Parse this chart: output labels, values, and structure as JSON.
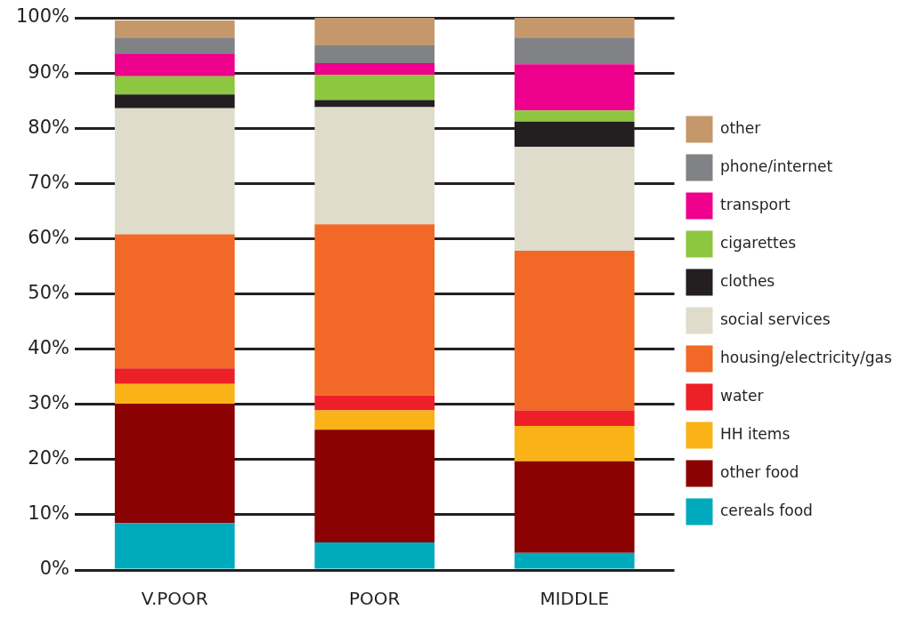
{
  "chart_data": {
    "type": "bar",
    "stacked": true,
    "categories": [
      "V.POOR",
      "POOR",
      "MIDDLE"
    ],
    "series": [
      {
        "name": "cereals food",
        "color": "#00aabd",
        "values": [
          8.5,
          5.0,
          3.1
        ]
      },
      {
        "name": "other food",
        "color": "#8b0203",
        "values": [
          21.6,
          20.4,
          16.6
        ]
      },
      {
        "name": "HH items",
        "color": "#f9b316",
        "values": [
          3.6,
          3.5,
          6.4
        ]
      },
      {
        "name": "water",
        "color": "#ed1f27",
        "values": [
          2.8,
          2.7,
          2.8
        ]
      },
      {
        "name": "housing/electricity/gas",
        "color": "#f26826",
        "values": [
          24.3,
          31.0,
          28.9
        ]
      },
      {
        "name": "social services",
        "color": "#dfdccb",
        "values": [
          22.8,
          21.2,
          18.8
        ]
      },
      {
        "name": "clothes",
        "color": "#231f20",
        "values": [
          2.5,
          1.3,
          4.6
        ]
      },
      {
        "name": "cigarettes",
        "color": "#8dc63f",
        "values": [
          3.3,
          4.6,
          2.0
        ]
      },
      {
        "name": "transport",
        "color": "#ec008c",
        "values": [
          4.1,
          2.1,
          8.4
        ]
      },
      {
        "name": "phone/internet",
        "color": "#818285",
        "values": [
          2.9,
          3.2,
          4.8
        ]
      },
      {
        "name": "other",
        "color": "#c4986b",
        "values": [
          3.1,
          5.0,
          3.6
        ]
      }
    ],
    "ylim": [
      0,
      100
    ],
    "yticks": [
      {
        "value": 0,
        "label": "0%"
      },
      {
        "value": 10,
        "label": "10%"
      },
      {
        "value": 20,
        "label": "20%"
      },
      {
        "value": 30,
        "label": "30%"
      },
      {
        "value": 40,
        "label": "40%"
      },
      {
        "value": 50,
        "label": "50%"
      },
      {
        "value": 60,
        "label": "60%"
      },
      {
        "value": 70,
        "label": "70%"
      },
      {
        "value": 80,
        "label": "80%"
      },
      {
        "value": 90,
        "label": "90%"
      },
      {
        "value": 100,
        "label": "100%"
      }
    ],
    "grid": "y",
    "legend": "right"
  }
}
